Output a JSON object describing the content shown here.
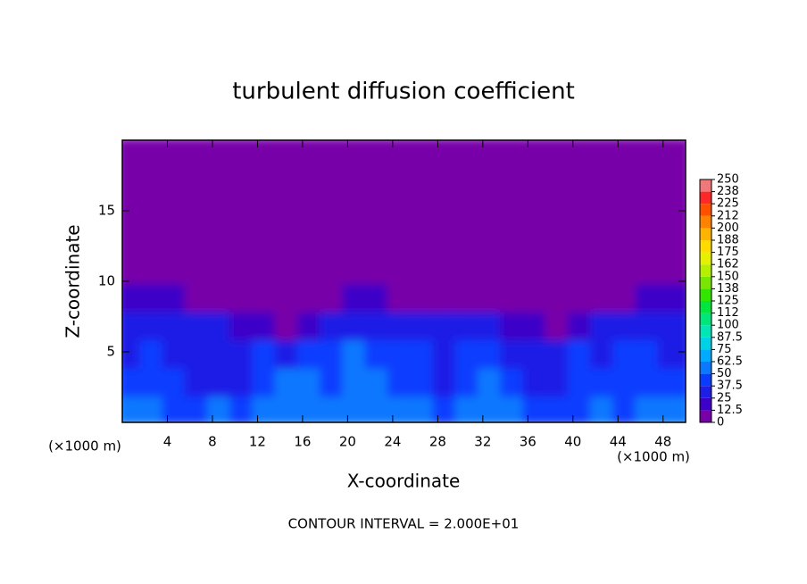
{
  "chart_data": {
    "type": "heatmap",
    "title": "turbulent diffusion coefficient",
    "x_label": "X-coordinate",
    "y_label": "Z-coordinate",
    "x_unit": "(×1000 m)",
    "footnote": "CONTOUR INTERVAL = 2.000E+01",
    "xlim": [
      0,
      50
    ],
    "ylim": [
      0,
      20
    ],
    "xticks": [
      4,
      8,
      12,
      16,
      20,
      24,
      28,
      32,
      36,
      40,
      44,
      48
    ],
    "yticks": [
      5,
      10,
      15
    ],
    "x": [
      1,
      3,
      5,
      7,
      9,
      11,
      13,
      15,
      17,
      19,
      21,
      23,
      25,
      27,
      29,
      31,
      33,
      35,
      37,
      39,
      41,
      43,
      45,
      47,
      49
    ],
    "y": [
      1,
      3,
      5,
      7,
      9,
      11,
      13,
      15,
      17,
      19
    ],
    "z": [
      [
        50,
        55,
        45,
        40,
        50,
        45,
        55,
        62,
        62,
        55,
        62,
        62,
        55,
        50,
        45,
        55,
        62,
        50,
        45,
        40,
        45,
        50,
        45,
        50,
        55
      ],
      [
        40,
        45,
        40,
        35,
        37,
        35,
        45,
        50,
        50,
        45,
        50,
        55,
        45,
        40,
        37,
        40,
        50,
        45,
        37,
        35,
        40,
        45,
        40,
        45,
        40
      ],
      [
        37,
        40,
        37,
        30,
        35,
        37,
        40,
        37,
        40,
        45,
        50,
        45,
        40,
        45,
        37,
        40,
        45,
        37,
        30,
        37,
        40,
        37,
        45,
        40,
        37
      ],
      [
        30,
        37,
        30,
        25,
        30,
        20,
        12.5,
        0,
        12.5,
        30,
        37,
        37,
        30,
        30,
        25,
        30,
        30,
        20,
        12.5,
        0,
        20,
        30,
        25,
        30,
        30
      ],
      [
        12.5,
        12.5,
        12.5,
        0,
        0,
        0,
        0,
        0,
        0,
        0,
        12.5,
        12.5,
        0,
        0,
        0,
        0,
        0,
        0,
        0,
        0,
        0,
        0,
        0,
        12.5,
        12.5
      ],
      [
        0,
        0,
        0,
        0,
        0,
        0,
        0,
        0,
        0,
        0,
        0,
        0,
        0,
        0,
        0,
        0,
        0,
        0,
        0,
        0,
        0,
        0,
        0,
        0,
        0
      ],
      [
        0,
        0,
        0,
        0,
        0,
        0,
        0,
        0,
        0,
        0,
        0,
        0,
        0,
        0,
        0,
        0,
        0,
        0,
        0,
        0,
        0,
        0,
        0,
        0,
        0
      ],
      [
        0,
        0,
        0,
        0,
        0,
        0,
        0,
        0,
        0,
        0,
        0,
        0,
        0,
        0,
        0,
        0,
        0,
        0,
        0,
        0,
        0,
        0,
        0,
        0,
        0
      ],
      [
        0,
        0,
        0,
        0,
        0,
        0,
        0,
        0,
        0,
        0,
        0,
        0,
        0,
        0,
        0,
        0,
        0,
        0,
        0,
        0,
        0,
        0,
        0,
        0,
        0
      ],
      [
        0,
        0,
        0,
        0,
        0,
        0,
        0,
        0,
        0,
        0,
        0,
        0,
        0,
        0,
        0,
        0,
        0,
        0,
        0,
        0,
        0,
        0,
        0,
        0,
        0
      ]
    ],
    "levels": [
      0,
      12.5,
      25,
      37.5,
      50,
      62.5,
      75,
      87.5,
      100,
      112,
      125,
      138,
      150,
      162,
      175,
      188,
      200,
      212,
      225,
      238,
      250
    ],
    "colors": [
      "#7800a8",
      "#3c00c8",
      "#1e1ee6",
      "#0a3cff",
      "#0a78ff",
      "#00aaff",
      "#00d2e6",
      "#00e6b4",
      "#00e678",
      "#00e63c",
      "#32e600",
      "#78e600",
      "#b4f000",
      "#e6f000",
      "#ffdc00",
      "#ffb400",
      "#ff8200",
      "#ff5000",
      "#ff2828",
      "#f07878"
    ]
  }
}
